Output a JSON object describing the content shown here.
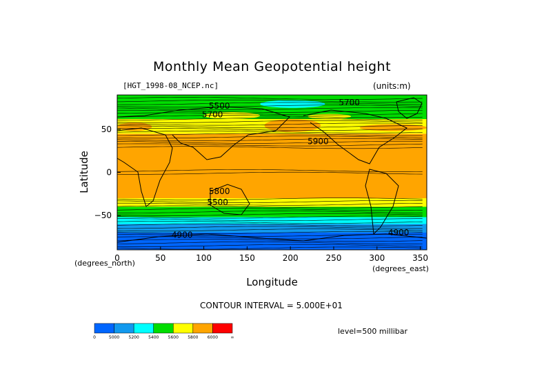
{
  "chart_data": {
    "type": "heatmap",
    "title": "Monthly Mean Geopotential height",
    "file_label": "[HGT_1998-08_NCEP.nc]",
    "units_label": "(units:m)",
    "xlabel": "Longitude",
    "ylabel": "Latitude",
    "x_units": "(degrees_east)",
    "y_units": "(degrees_north)",
    "xlim": [
      0,
      357.5
    ],
    "ylim": [
      -90,
      90
    ],
    "x_ticks": [
      0,
      50,
      100,
      150,
      200,
      250,
      300,
      350
    ],
    "y_ticks": [
      -50,
      0,
      50
    ],
    "contour_interval_text": "CONTOUR INTERVAL = 5.000E+01",
    "level_text": "level=500 millibar",
    "colorbar": {
      "colors": [
        "#0066ff",
        "#1199ee",
        "#00ffff",
        "#00dd00",
        "#ffff00",
        "#ffa500",
        "#ff0000"
      ],
      "boundaries": [
        "0",
        "5000",
        "5200",
        "5400",
        "5600",
        "5800",
        "6000",
        "∞"
      ]
    },
    "latitude_bands": [
      {
        "lat": [
          -90,
          -76
        ],
        "level": 0
      },
      {
        "lat": [
          -76,
          -70
        ],
        "level": 0
      },
      {
        "lat": [
          -70,
          -60
        ],
        "level": 1
      },
      {
        "lat": [
          -60,
          -52
        ],
        "level": 2
      },
      {
        "lat": [
          -52,
          -40
        ],
        "level": 3
      },
      {
        "lat": [
          -40,
          -30
        ],
        "level": 4
      },
      {
        "lat": [
          -30,
          45
        ],
        "level": 5
      },
      {
        "lat": [
          45,
          62
        ],
        "level": 4
      },
      {
        "lat": [
          62,
          78
        ],
        "level": 3
      },
      {
        "lat": [
          78,
          90
        ],
        "level": 3
      }
    ],
    "patches": [
      {
        "lon": [
          170,
          235
        ],
        "lat": [
          47,
          62
        ],
        "level": 5
      },
      {
        "lon": [
          280,
          357.5
        ],
        "lat": [
          48,
          56
        ],
        "level": 5
      },
      {
        "lon": [
          0,
          40
        ],
        "lat": [
          48,
          58
        ],
        "level": 5
      },
      {
        "lon": [
          165,
          240
        ],
        "lat": [
          75,
          84
        ],
        "level": 2
      },
      {
        "lon": [
          100,
          165
        ],
        "lat": [
          62,
          70
        ],
        "level": 4
      },
      {
        "lon": [
          220,
          270
        ],
        "lat": [
          62,
          68
        ],
        "level": 4
      }
    ],
    "contour_labels": [
      {
        "text": "5500",
        "lon": 118,
        "lat": 74
      },
      {
        "text": "5700",
        "lon": 110,
        "lat": 64
      },
      {
        "text": "5900",
        "lon": 232,
        "lat": 33
      },
      {
        "text": "5700",
        "lon": 268,
        "lat": 78
      },
      {
        "text": "5800",
        "lon": 118,
        "lat": -25
      },
      {
        "text": "5500",
        "lon": 116,
        "lat": -38
      },
      {
        "text": "4900",
        "lon": 75,
        "lat": -76
      },
      {
        "text": "4900",
        "lon": 325,
        "lat": -73
      }
    ]
  }
}
